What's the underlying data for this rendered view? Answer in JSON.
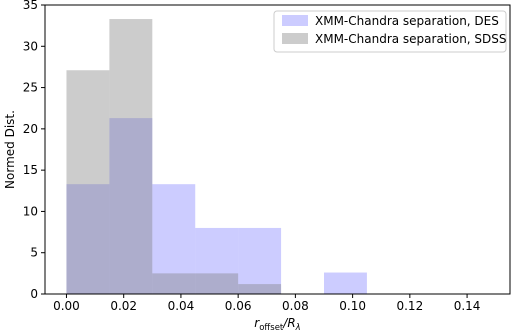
{
  "chart_data": {
    "type": "bar",
    "xlabel_parts": {
      "base": "r",
      "sub1": "offset",
      "sep": "/R",
      "sub2": "λ"
    },
    "ylabel": "Normed Dist.",
    "xlim": [
      -0.0075,
      0.155
    ],
    "ylim": [
      0,
      35
    ],
    "xticks": [
      0.0,
      0.02,
      0.04,
      0.06,
      0.08,
      0.1,
      0.12,
      0.14
    ],
    "xtick_labels": [
      "0.00",
      "0.02",
      "0.04",
      "0.06",
      "0.08",
      "0.10",
      "0.12",
      "0.14"
    ],
    "yticks": [
      0,
      5,
      10,
      15,
      20,
      25,
      30,
      35
    ],
    "ytick_labels": [
      "0",
      "5",
      "10",
      "15",
      "20",
      "25",
      "30",
      "35"
    ],
    "legend_position": "top-right",
    "series": [
      {
        "name": "XMM-Chandra separation, DES",
        "color": "#8080ff",
        "opacity": 0.4,
        "bin_edges": [
          0.0,
          0.015,
          0.03,
          0.045,
          0.06,
          0.075,
          0.09,
          0.105
        ],
        "values": [
          13.3,
          21.3,
          13.3,
          8.0,
          8.0,
          0.0,
          2.6
        ]
      },
      {
        "name": "XMM-Chandra separation, SDSS",
        "color": "#808080",
        "opacity": 0.4,
        "bin_edges": [
          0.0,
          0.015,
          0.03,
          0.045,
          0.06,
          0.075
        ],
        "values": [
          27.1,
          33.3,
          2.5,
          2.5,
          1.2
        ]
      }
    ]
  }
}
